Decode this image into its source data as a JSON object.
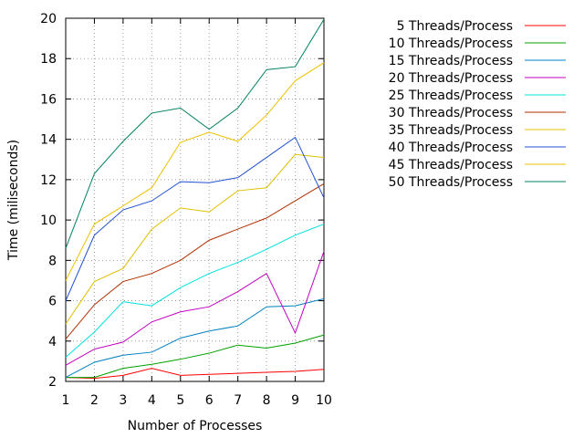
{
  "chart_data": {
    "type": "line",
    "title": "",
    "xlabel": "Number of Processes",
    "ylabel": "Time (miliseconds)",
    "xlim": [
      1,
      10
    ],
    "ylim": [
      2,
      20
    ],
    "grid": true,
    "legend_position": "right",
    "x": [
      1,
      2,
      3,
      4,
      5,
      6,
      7,
      8,
      9,
      10
    ],
    "x_ticks": [
      "1",
      "2",
      "3",
      "4",
      "5",
      "6",
      "7",
      "8",
      "9",
      "10"
    ],
    "y_ticks": [
      "2",
      "4",
      "6",
      "8",
      "10",
      "12",
      "14",
      "16",
      "18",
      "20"
    ],
    "series": [
      {
        "name": "5 Threads/Process",
        "color": "#ff0000",
        "values": [
          2.2,
          2.15,
          2.3,
          2.65,
          2.3,
          2.35,
          2.4,
          2.45,
          2.5,
          2.6
        ]
      },
      {
        "name": "10 Threads/Process",
        "color": "#00a000",
        "values": [
          2.2,
          2.2,
          2.65,
          2.85,
          3.1,
          3.4,
          3.8,
          3.65,
          3.9,
          4.3
        ]
      },
      {
        "name": "15 Threads/Process",
        "color": "#0080c0",
        "values": [
          2.2,
          2.95,
          3.3,
          3.45,
          4.15,
          4.5,
          4.75,
          5.7,
          5.75,
          6.1
        ]
      },
      {
        "name": "20 Threads/Process",
        "color": "#c000c0",
        "values": [
          2.8,
          3.6,
          3.95,
          4.95,
          5.45,
          5.7,
          6.45,
          7.35,
          4.4,
          8.45
        ]
      },
      {
        "name": "25 Threads/Process",
        "color": "#00e0e0",
        "values": [
          3.2,
          4.45,
          5.95,
          5.75,
          6.65,
          7.35,
          7.9,
          8.55,
          9.25,
          9.8
        ]
      },
      {
        "name": "30 Threads/Process",
        "color": "#b03000",
        "values": [
          4.1,
          5.8,
          6.95,
          7.35,
          8.0,
          9.0,
          9.55,
          10.1,
          10.95,
          11.8
        ]
      },
      {
        "name": "35 Threads/Process",
        "color": "#e0c000",
        "values": [
          4.85,
          6.95,
          7.6,
          9.55,
          10.6,
          10.4,
          11.45,
          11.6,
          13.25,
          13.1
        ]
      },
      {
        "name": "40 Threads/Process",
        "color": "#2050d0",
        "values": [
          6.0,
          9.25,
          10.5,
          10.95,
          11.9,
          11.85,
          12.1,
          13.1,
          14.1,
          11.1
        ]
      },
      {
        "name": "45 Threads/Process",
        "color": "#f0c000",
        "values": [
          7.0,
          9.8,
          10.7,
          11.6,
          13.85,
          14.35,
          13.9,
          15.2,
          16.9,
          17.8
        ]
      },
      {
        "name": "50 Threads/Process",
        "color": "#008060",
        "values": [
          8.6,
          12.3,
          13.9,
          15.3,
          15.55,
          14.5,
          15.55,
          17.45,
          17.6,
          19.95
        ]
      }
    ]
  }
}
